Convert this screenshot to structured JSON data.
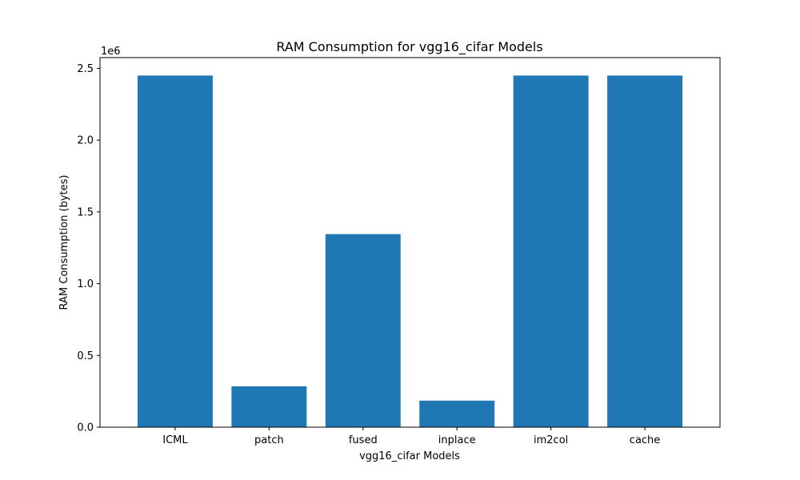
{
  "chart_data": {
    "type": "bar",
    "title": "RAM Consumption for vgg16_cifar Models",
    "xlabel": "vgg16_cifar Models",
    "ylabel": "RAM Consumption (bytes)",
    "y_offset_label": "1e6",
    "categories": [
      "ICML",
      "patch",
      "fused",
      "inplace",
      "im2col",
      "cache"
    ],
    "values": [
      2450000,
      285000,
      1345000,
      185000,
      2450000,
      2450000
    ],
    "ylim": [
      0,
      2575000
    ],
    "yticks": [
      0,
      500000,
      1000000,
      1500000,
      2000000,
      2500000
    ],
    "ytick_labels": [
      "0.0",
      "0.5",
      "1.0",
      "1.5",
      "2.0",
      "2.5"
    ],
    "bar_color": "#1f77b4",
    "grid": false
  }
}
